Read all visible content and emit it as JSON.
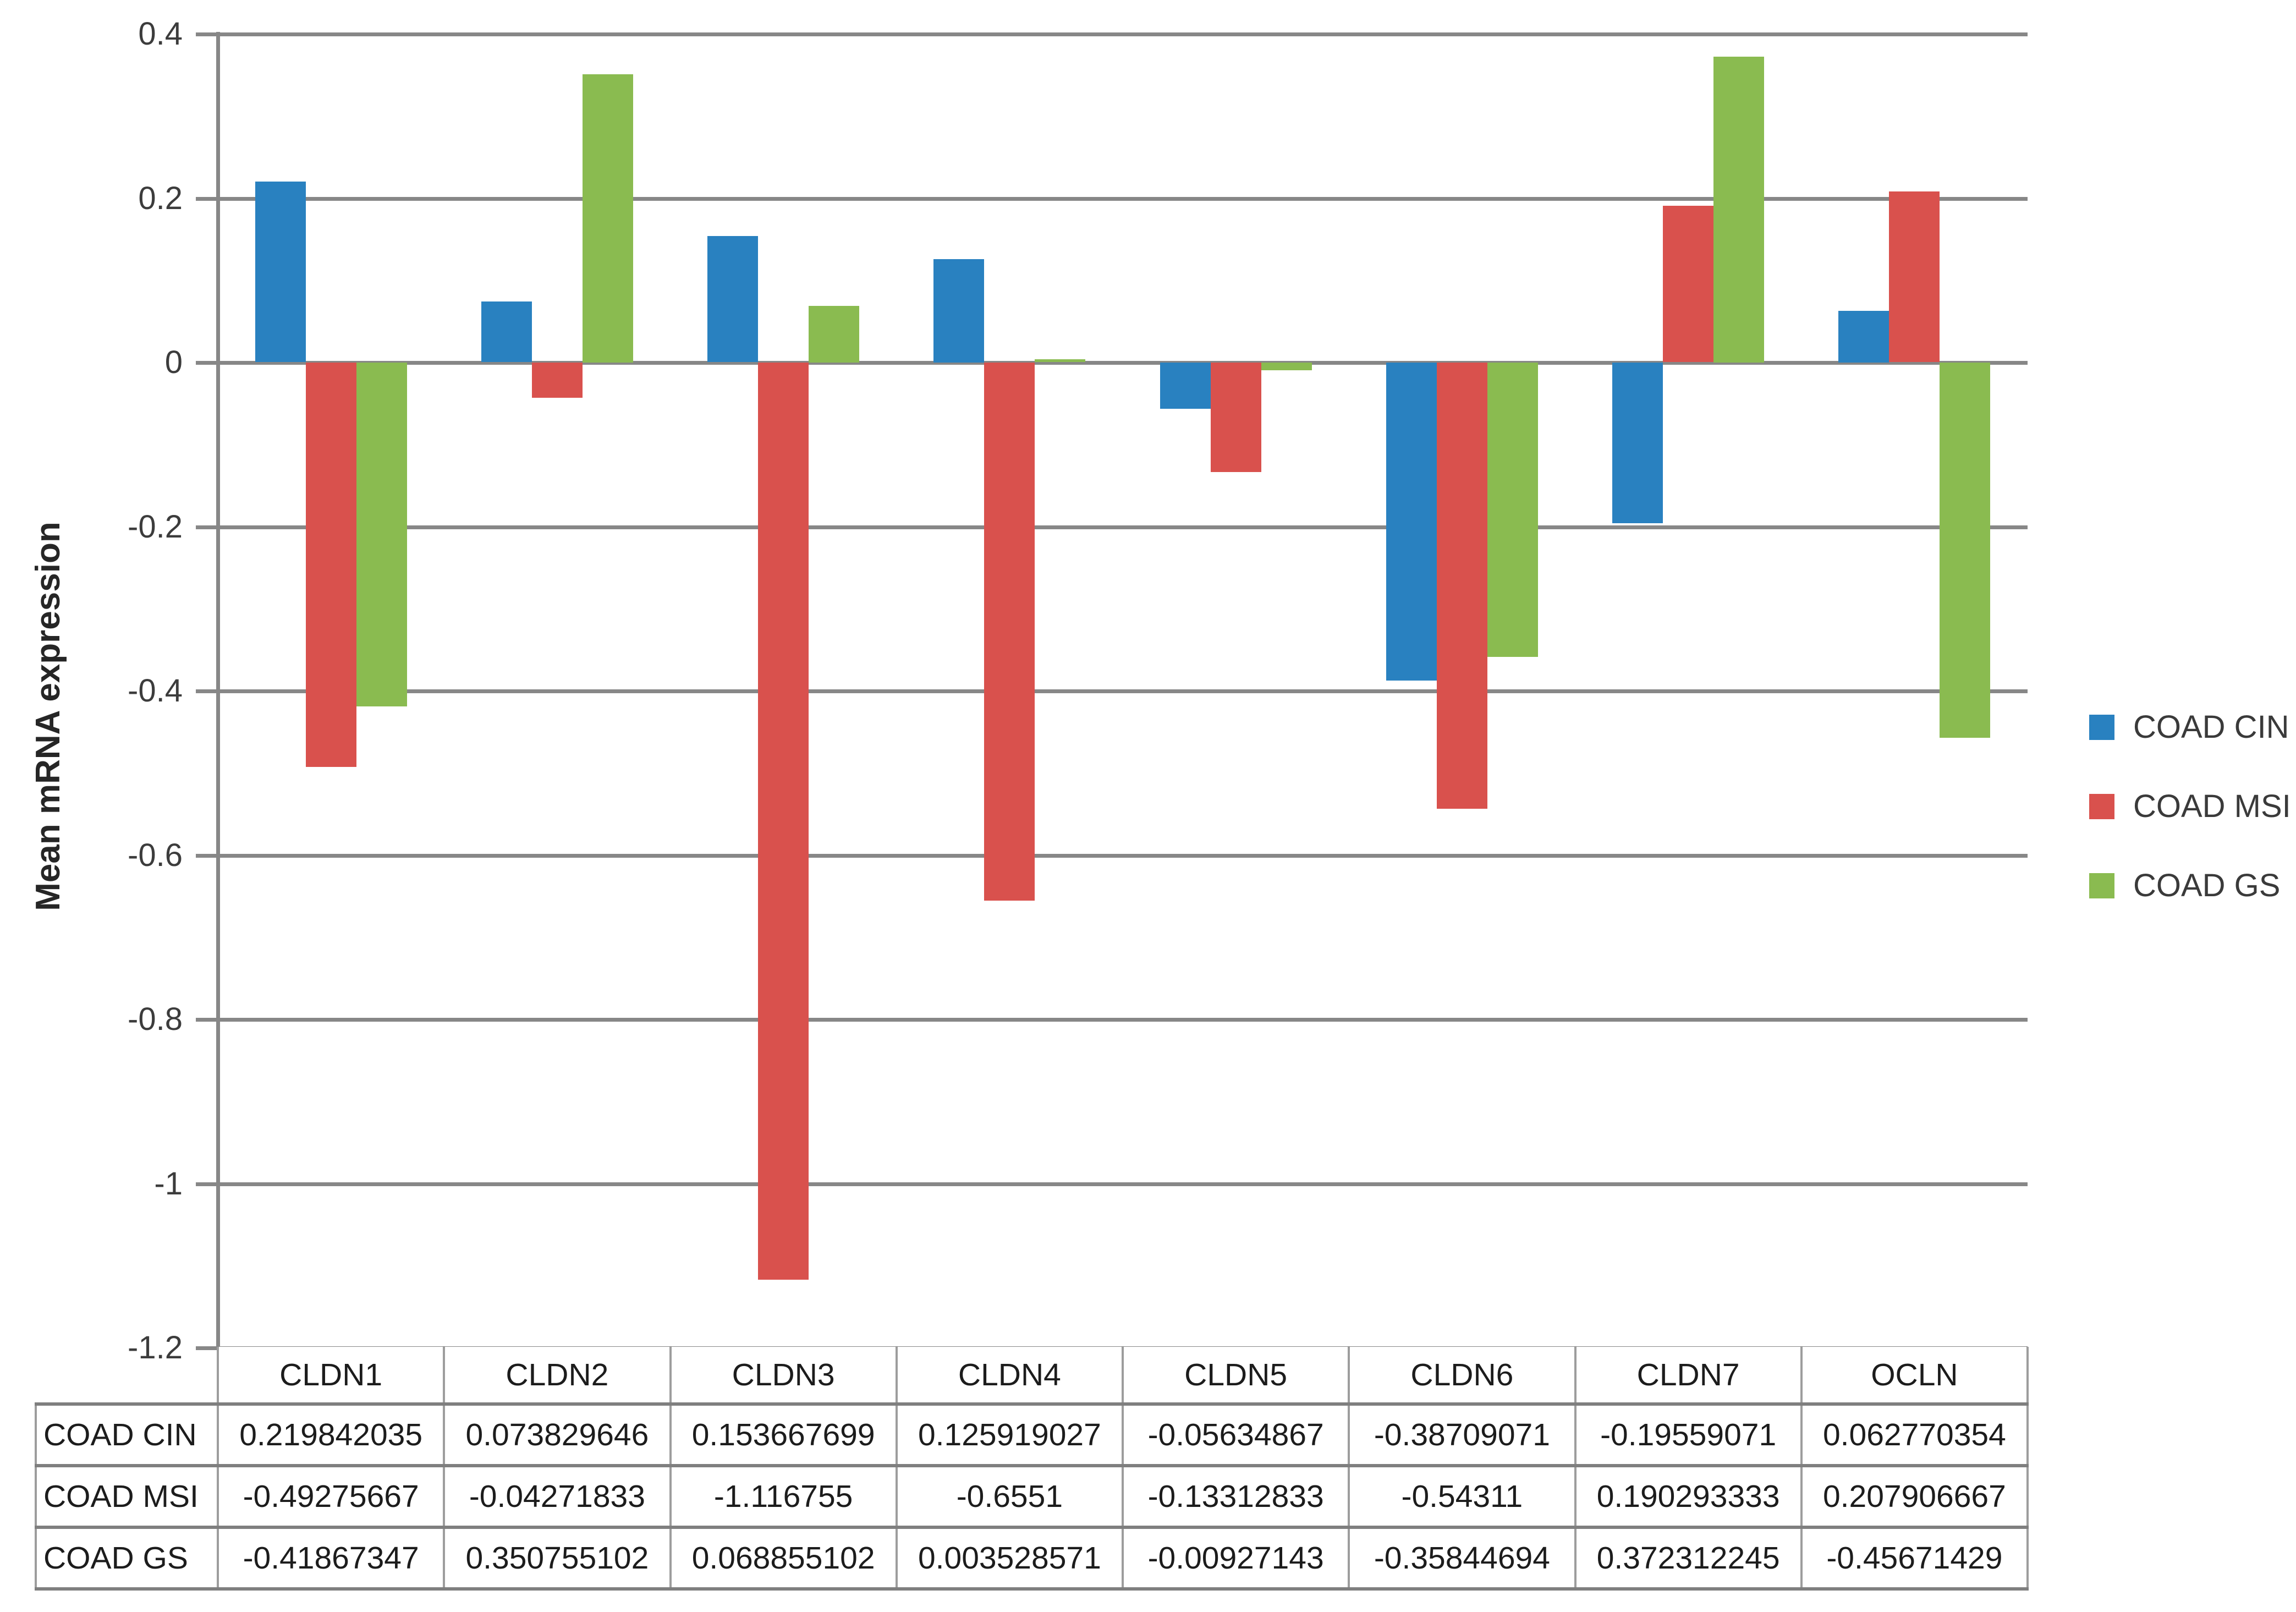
{
  "chart_data": {
    "type": "bar",
    "title": "",
    "ylabel": "Mean mRNA expression",
    "xlabel": "",
    "categories": [
      "CLDN1",
      "CLDN2",
      "CLDN3",
      "CLDN4",
      "CLDN5",
      "CLDN6",
      "CLDN7",
      "OCLN"
    ],
    "series": [
      {
        "name": "COAD CIN",
        "color": "#2981C0",
        "values": [
          0.219842035,
          0.073829646,
          0.153667699,
          0.125919027,
          -0.05634867,
          -0.38709071,
          -0.19559071,
          0.062770354
        ]
      },
      {
        "name": "COAD MSI",
        "color": "#D9514D",
        "values": [
          -0.49275667,
          -0.04271833,
          -1.116755,
          -0.6551,
          -0.13312833,
          -0.54311,
          0.190293333,
          0.207906667
        ]
      },
      {
        "name": "COAD GS",
        "color": "#8ABB50",
        "values": [
          -0.41867347,
          0.350755102,
          0.068855102,
          0.003528571,
          -0.00927143,
          -0.35844694,
          0.372312245,
          -0.45671429
        ]
      }
    ],
    "ylim": [
      -1.2,
      0.4
    ],
    "ytick_labels": [
      "0.4",
      "0.2",
      "0",
      "-0.2",
      "-0.4",
      "-0.6",
      "-0.8",
      "-1",
      "-1.2"
    ],
    "yticks": [
      0.4,
      0.2,
      0,
      -0.2,
      -0.4,
      -0.6,
      -0.8,
      -1,
      -1.2
    ],
    "grid": true,
    "legend_position": "right",
    "data_table": {
      "corner_label": "",
      "col_headers": [
        "CLDN1",
        "CLDN2",
        "CLDN3",
        "CLDN4",
        "CLDN5",
        "CLDN6",
        "CLDN7",
        "OCLN"
      ],
      "rows": [
        {
          "label": "COAD CIN",
          "cells": [
            "0.219842035",
            "0.073829646",
            "0.153667699",
            "0.125919027",
            "-0.05634867",
            "-0.38709071",
            "-0.19559071",
            "0.062770354"
          ]
        },
        {
          "label": "COAD MSI",
          "cells": [
            "-0.49275667",
            "-0.04271833",
            "-1.116755",
            "-0.6551",
            "-0.13312833",
            "-0.54311",
            "0.190293333",
            "0.207906667"
          ]
        },
        {
          "label": "COAD GS",
          "cells": [
            "-0.41867347",
            "0.350755102",
            "0.068855102",
            "0.003528571",
            "-0.00927143",
            "-0.35844694",
            "0.372312245",
            "-0.45671429"
          ]
        }
      ]
    }
  },
  "colors": {
    "gridline": "#878787",
    "axis_line": "#878787",
    "table_border_horizontal": "#7f7f7f",
    "table_border_vertical": "#9d9d9d",
    "tick_text": "#3c3c3c",
    "table_text": "#1c1c1c",
    "background": "#ffffff"
  }
}
